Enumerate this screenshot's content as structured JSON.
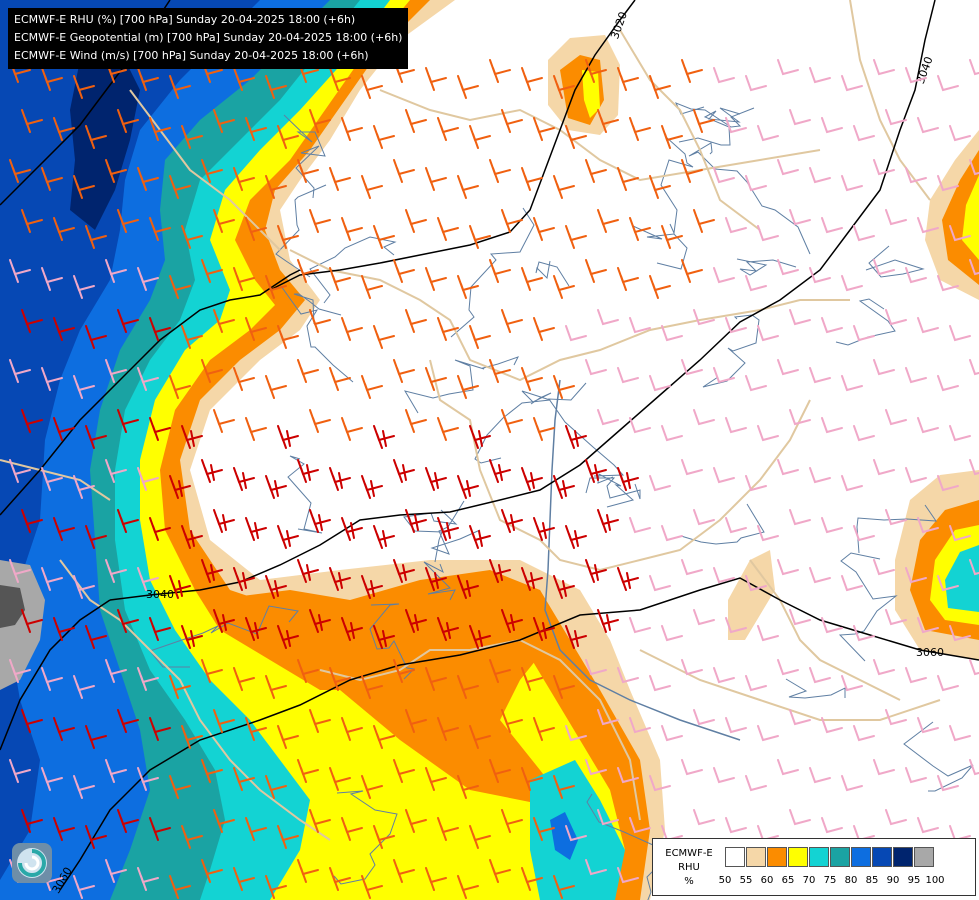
{
  "title_lines": [
    "ECMWF-E RHU (%) [700 hPa] Sunday 20-04-2025 18:00 (+6h)",
    "ECMWF-E Geopotential (m) [700 hPa] Sunday 20-04-2025 18:00 (+6h)",
    "ECMWF-E Wind (m/s) [700 hPa] Sunday 20-04-2025 18:00 (+6h)"
  ],
  "legend": {
    "title_line1": "ECMWF-E",
    "title_line2": "RHU",
    "unit": "%",
    "ticks": [
      "50",
      "55",
      "60",
      "65",
      "70",
      "75",
      "80",
      "85",
      "90",
      "95",
      "100"
    ],
    "colors": [
      "#ffffff",
      "#f5d7a8",
      "#fb8c00",
      "#ffff00",
      "#13d3d3",
      "#1aa3a3",
      "#0d6ee0",
      "#0648b4",
      "#00246e",
      "#a8a8a8",
      "#555555"
    ]
  },
  "contour_labels": [
    "3020",
    "3040",
    "3040",
    "3060",
    "3060"
  ],
  "colors": {
    "river": "#5f7fa3",
    "border": "#e0c8a0",
    "contour": "#000000",
    "wind_strong": "#cc0000",
    "wind_mid": "#f06010",
    "wind_light": "#f0a8c8"
  },
  "icons": [
    "ecmwf-logo-icon"
  ]
}
